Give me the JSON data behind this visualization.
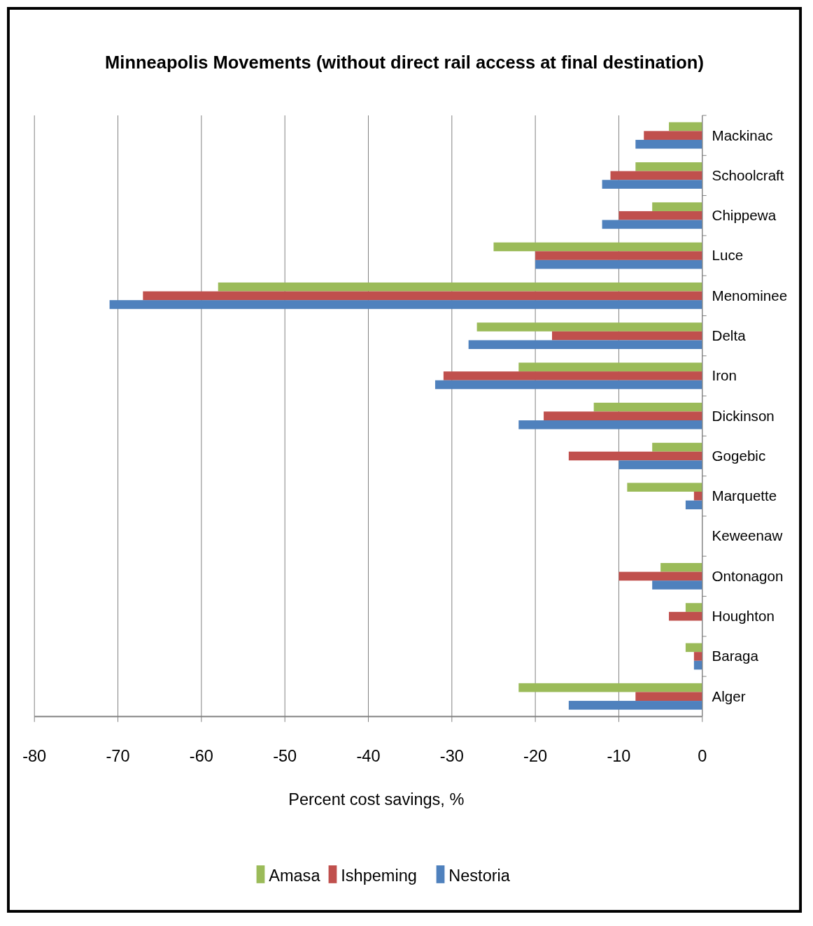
{
  "chart_data": {
    "type": "bar",
    "orientation": "horizontal",
    "title": "Minneapolis Movements (without direct rail access at final destination)",
    "xlabel": "Percent cost savings, %",
    "categories": [
      "Mackinac",
      "Schoolcraft",
      "Chippewa",
      "Luce",
      "Menominee",
      "Delta",
      "Iron",
      "Dickinson",
      "Gogebic",
      "Marquette",
      "Keweenaw",
      "Ontonagon",
      "Houghton",
      "Baraga",
      "Alger"
    ],
    "series": [
      {
        "name": "Amasa",
        "color": "#9bbb59",
        "values": [
          -4,
          -8,
          -6,
          -25,
          -58,
          -27,
          -22,
          -13,
          -6,
          -9,
          0,
          -5,
          -2,
          -2,
          -22
        ]
      },
      {
        "name": "Ishpeming",
        "color": "#c0504d",
        "values": [
          -7,
          -11,
          -10,
          -20,
          -67,
          -18,
          -31,
          -19,
          -16,
          -1,
          0,
          -10,
          -4,
          -1,
          -8
        ]
      },
      {
        "name": "Nestoria",
        "color": "#4f81bd",
        "values": [
          -8,
          -12,
          -12,
          -20,
          -71,
          -28,
          -32,
          -22,
          -10,
          -2,
          0,
          -6,
          0,
          -1,
          -16
        ]
      }
    ],
    "xlim": [
      -80,
      0
    ],
    "xticks": [
      -80,
      -70,
      -60,
      -50,
      -40,
      -30,
      -20,
      -10,
      0
    ],
    "grid": "x",
    "legend": "bottom"
  }
}
